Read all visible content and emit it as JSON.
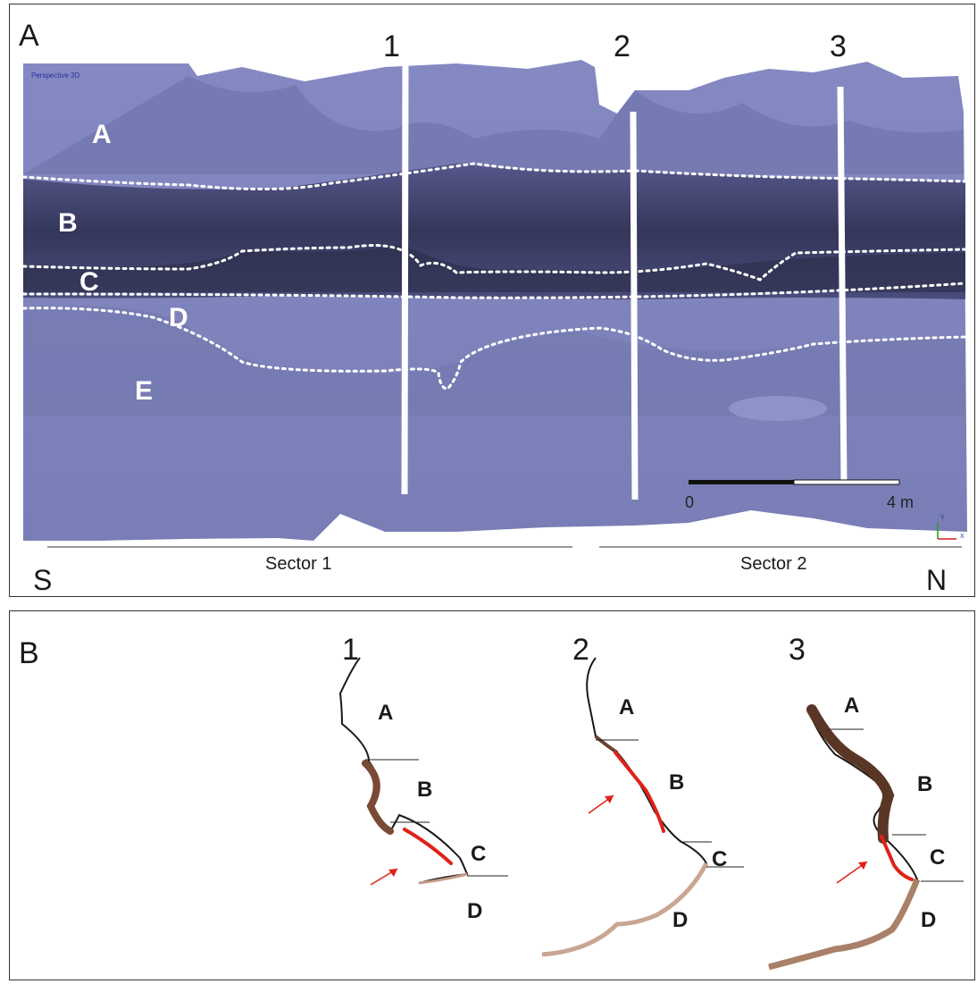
{
  "panel_a": {
    "letter": "A",
    "transect_labels": [
      "1",
      "2",
      "3"
    ],
    "layer_labels": [
      "A",
      "B",
      "C",
      "D",
      "E"
    ],
    "viewport_label": "Perspective 3D",
    "scale_bar": {
      "start_label": "0",
      "end_label": "4 m"
    },
    "axis_labels": {
      "y": "Y",
      "x": "X"
    },
    "sectors": [
      "Sector 1",
      "Sector 2"
    ],
    "directions": {
      "left": "S",
      "right": "N"
    },
    "colors": {
      "surface": "#7b7fb8",
      "dark_layer": "#3c3f63",
      "boundary": "#ffffff"
    }
  },
  "panel_b": {
    "letter": "B",
    "profiles": [
      {
        "number": "1",
        "labels": [
          "A",
          "B",
          "C",
          "D"
        ]
      },
      {
        "number": "2",
        "labels": [
          "A",
          "B",
          "C",
          "D"
        ]
      },
      {
        "number": "3",
        "labels": [
          "A",
          "B",
          "C",
          "D"
        ]
      }
    ],
    "colors": {
      "section": "#6b4330",
      "highlight": "#e0201a",
      "arrow": "#e0201a"
    }
  }
}
